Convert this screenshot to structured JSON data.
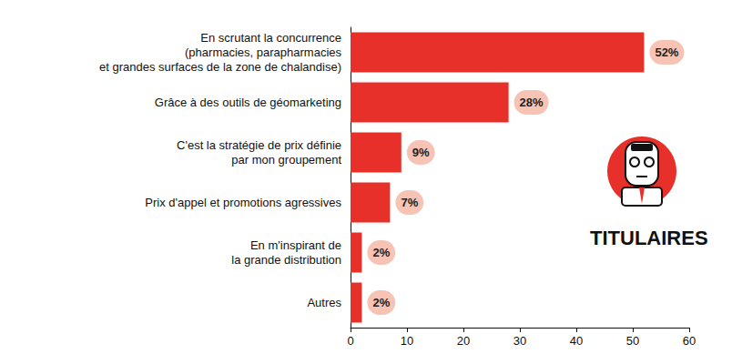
{
  "chart_data": {
    "type": "bar",
    "orientation": "horizontal",
    "categories": [
      "En scrutant la concurrence\n(pharmacies, parapharmacies\net grandes surfaces de la zone de chalandise)",
      "Grâce à des outils de géomarketing",
      "C'est la stratégie de prix définie\npar mon groupement",
      "Prix d'appel et promotions agressives",
      "En m'inspirant de\nla grande distribution",
      "Autres"
    ],
    "values": [
      52,
      28,
      9,
      7,
      2,
      2
    ],
    "value_labels": [
      "52%",
      "28%",
      "9%",
      "7%",
      "2%",
      "2%"
    ],
    "data_labels": true,
    "color": "#e8302a",
    "xlim": [
      0,
      60
    ],
    "xticks": [
      0,
      10,
      20,
      30,
      40,
      50,
      60
    ],
    "grid": false,
    "annotations": [
      "TITULAIRES"
    ]
  }
}
